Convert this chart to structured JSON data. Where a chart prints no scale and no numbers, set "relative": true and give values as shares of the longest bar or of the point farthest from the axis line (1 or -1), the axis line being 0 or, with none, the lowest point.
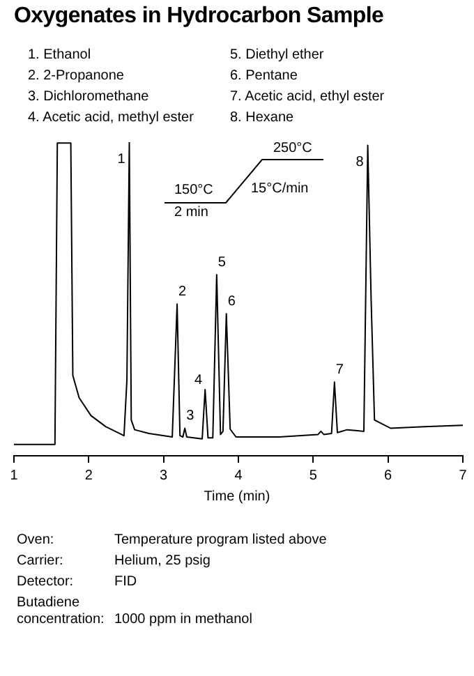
{
  "chart_data": {
    "type": "line",
    "title": "Oxygenates in Hydrocarbon Sample",
    "xlabel": "Time (min)",
    "relative": true,
    "tick_labels": "x",
    "grid": false,
    "legend": false,
    "marker": "none",
    "xlim": [
      1,
      7
    ],
    "xticks": [
      1,
      2,
      3,
      4,
      5,
      6,
      7
    ],
    "series": [
      {
        "color": "#000000",
        "x": [
          1.0,
          1.548,
          1.58,
          1.76,
          1.787,
          1.871,
          2.03,
          2.226,
          2.471,
          2.51,
          2.542,
          2.568,
          2.613,
          2.806,
          3.116,
          3.181,
          3.219,
          3.258,
          3.284,
          3.31,
          3.516,
          3.555,
          3.594,
          3.658,
          3.71,
          3.761,
          3.794,
          3.839,
          3.89,
          3.968,
          4.548,
          5.065,
          5.103,
          5.142,
          5.245,
          5.284,
          5.323,
          5.452,
          5.677,
          5.729,
          5.774,
          5.819,
          6.032,
          6.484,
          7.0
        ],
        "values": [
          0.036,
          0.036,
          0.997,
          0.997,
          0.256,
          0.185,
          0.128,
          0.093,
          0.064,
          0.242,
          1.0,
          0.114,
          0.083,
          0.071,
          0.06,
          0.484,
          0.064,
          0.06,
          0.088,
          0.06,
          0.054,
          0.211,
          0.057,
          0.057,
          0.577,
          0.068,
          0.078,
          0.453,
          0.085,
          0.06,
          0.06,
          0.068,
          0.078,
          0.068,
          0.071,
          0.235,
          0.074,
          0.083,
          0.078,
          0.99,
          0.5,
          0.114,
          0.088,
          0.093,
          0.097
        ]
      }
    ],
    "annotations": [
      "1. Ethanol",
      "2. 2-Propanone",
      "3. Dichloromethane",
      "4. Acetic acid, methyl ester",
      "5. Diethyl ether",
      "6. Pentane",
      "7. Acetic acid, ethyl ester",
      "8. Hexane",
      "150°C",
      "2 min",
      "250°C",
      "15°C/min",
      "Oven:",
      "Temperature program listed above",
      "Carrier:",
      "Helium, 25 psig",
      "Detector:",
      "FID",
      "Butadiene concentration:",
      "1000 ppm in methanol",
      {
        "text": "1",
        "x": 2.542,
        "y": 1.0
      },
      {
        "text": "2",
        "x": 3.181,
        "y": 0.484
      },
      {
        "text": "3",
        "x": 3.284,
        "y": 0.088
      },
      {
        "text": "4",
        "x": 3.555,
        "y": 0.211
      },
      {
        "text": "5",
        "x": 3.71,
        "y": 0.577
      },
      {
        "text": "6",
        "x": 3.839,
        "y": 0.453
      },
      {
        "text": "7",
        "x": 5.284,
        "y": 0.235
      },
      {
        "text": "8",
        "x": 5.729,
        "y": 0.99
      }
    ]
  }
}
